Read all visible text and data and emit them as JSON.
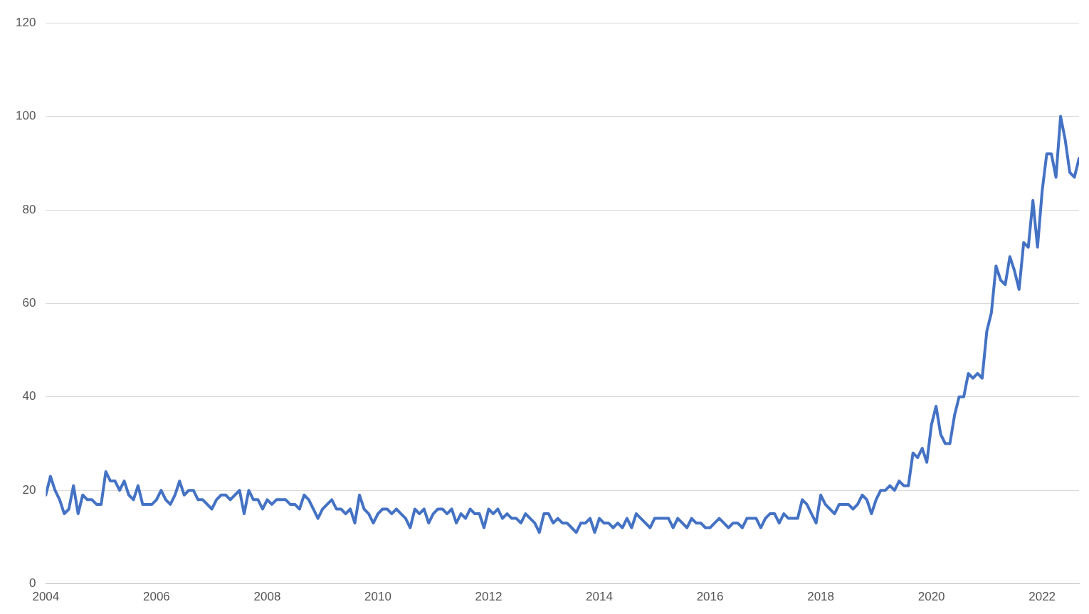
{
  "chart_data": {
    "type": "line",
    "color": "#4472c4",
    "xlim": [
      "2004-01",
      "2022-09"
    ],
    "xticks": [
      "2004",
      "2006",
      "2008",
      "2010",
      "2012",
      "2014",
      "2016",
      "2018",
      "2020",
      "2022"
    ],
    "ylim": [
      0,
      120
    ],
    "yticks": [
      0,
      20,
      40,
      60,
      80,
      100,
      120
    ],
    "grid": "y",
    "marker": "none",
    "line_style": "solid",
    "x": [
      "2004-01",
      "2004-02",
      "2004-03",
      "2004-04",
      "2004-05",
      "2004-06",
      "2004-07",
      "2004-08",
      "2004-09",
      "2004-10",
      "2004-11",
      "2004-12",
      "2005-01",
      "2005-02",
      "2005-03",
      "2005-04",
      "2005-05",
      "2005-06",
      "2005-07",
      "2005-08",
      "2005-09",
      "2005-10",
      "2005-11",
      "2005-12",
      "2006-01",
      "2006-02",
      "2006-03",
      "2006-04",
      "2006-05",
      "2006-06",
      "2006-07",
      "2006-08",
      "2006-09",
      "2006-10",
      "2006-11",
      "2006-12",
      "2007-01",
      "2007-02",
      "2007-03",
      "2007-04",
      "2007-05",
      "2007-06",
      "2007-07",
      "2007-08",
      "2007-09",
      "2007-10",
      "2007-11",
      "2007-12",
      "2008-01",
      "2008-02",
      "2008-03",
      "2008-04",
      "2008-05",
      "2008-06",
      "2008-07",
      "2008-08",
      "2008-09",
      "2008-10",
      "2008-11",
      "2008-12",
      "2009-01",
      "2009-02",
      "2009-03",
      "2009-04",
      "2009-05",
      "2009-06",
      "2009-07",
      "2009-08",
      "2009-09",
      "2009-10",
      "2009-11",
      "2009-12",
      "2010-01",
      "2010-02",
      "2010-03",
      "2010-04",
      "2010-05",
      "2010-06",
      "2010-07",
      "2010-08",
      "2010-09",
      "2010-10",
      "2010-11",
      "2010-12",
      "2011-01",
      "2011-02",
      "2011-03",
      "2011-04",
      "2011-05",
      "2011-06",
      "2011-07",
      "2011-08",
      "2011-09",
      "2011-10",
      "2011-11",
      "2011-12",
      "2012-01",
      "2012-02",
      "2012-03",
      "2012-04",
      "2012-05",
      "2012-06",
      "2012-07",
      "2012-08",
      "2012-09",
      "2012-10",
      "2012-11",
      "2012-12",
      "2013-01",
      "2013-02",
      "2013-03",
      "2013-04",
      "2013-05",
      "2013-06",
      "2013-07",
      "2013-08",
      "2013-09",
      "2013-10",
      "2013-11",
      "2013-12",
      "2014-01",
      "2014-02",
      "2014-03",
      "2014-04",
      "2014-05",
      "2014-06",
      "2014-07",
      "2014-08",
      "2014-09",
      "2014-10",
      "2014-11",
      "2014-12",
      "2015-01",
      "2015-02",
      "2015-03",
      "2015-04",
      "2015-05",
      "2015-06",
      "2015-07",
      "2015-08",
      "2015-09",
      "2015-10",
      "2015-11",
      "2015-12",
      "2016-01",
      "2016-02",
      "2016-03",
      "2016-04",
      "2016-05",
      "2016-06",
      "2016-07",
      "2016-08",
      "2016-09",
      "2016-10",
      "2016-11",
      "2016-12",
      "2017-01",
      "2017-02",
      "2017-03",
      "2017-04",
      "2017-05",
      "2017-06",
      "2017-07",
      "2017-08",
      "2017-09",
      "2017-10",
      "2017-11",
      "2017-12",
      "2018-01",
      "2018-02",
      "2018-03",
      "2018-04",
      "2018-05",
      "2018-06",
      "2018-07",
      "2018-08",
      "2018-09",
      "2018-10",
      "2018-11",
      "2018-12",
      "2019-01",
      "2019-02",
      "2019-03",
      "2019-04",
      "2019-05",
      "2019-06",
      "2019-07",
      "2019-08",
      "2019-09",
      "2019-10",
      "2019-11",
      "2019-12",
      "2020-01",
      "2020-02",
      "2020-03",
      "2020-04",
      "2020-05",
      "2020-06",
      "2020-07",
      "2020-08",
      "2020-09",
      "2020-10",
      "2020-11",
      "2020-12",
      "2021-01",
      "2021-02",
      "2021-03",
      "2021-04",
      "2021-05",
      "2021-06",
      "2021-07",
      "2021-08",
      "2021-09",
      "2021-10",
      "2021-11",
      "2021-12",
      "2022-01",
      "2022-02",
      "2022-03",
      "2022-04",
      "2022-05",
      "2022-06",
      "2022-07",
      "2022-08",
      "2022-09"
    ],
    "values": [
      19,
      23,
      20,
      18,
      15,
      16,
      21,
      15,
      19,
      18,
      18,
      17,
      17,
      24,
      22,
      22,
      20,
      22,
      19,
      18,
      21,
      17,
      17,
      17,
      18,
      20,
      18,
      17,
      19,
      22,
      19,
      20,
      20,
      18,
      18,
      17,
      16,
      18,
      19,
      19,
      18,
      19,
      20,
      15,
      20,
      18,
      18,
      16,
      18,
      17,
      18,
      18,
      18,
      17,
      17,
      16,
      19,
      18,
      16,
      14,
      16,
      17,
      18,
      16,
      16,
      15,
      16,
      13,
      19,
      16,
      15,
      13,
      15,
      16,
      16,
      15,
      16,
      15,
      14,
      12,
      16,
      15,
      16,
      13,
      15,
      16,
      16,
      15,
      16,
      13,
      15,
      14,
      16,
      15,
      15,
      12,
      16,
      15,
      16,
      14,
      15,
      14,
      14,
      13,
      15,
      14,
      13,
      11,
      15,
      15,
      13,
      14,
      13,
      13,
      12,
      11,
      13,
      13,
      14,
      11,
      14,
      13,
      13,
      12,
      13,
      12,
      14,
      12,
      15,
      14,
      13,
      12,
      14,
      14,
      14,
      14,
      12,
      14,
      13,
      12,
      14,
      13,
      13,
      12,
      12,
      13,
      14,
      13,
      12,
      13,
      13,
      12,
      14,
      14,
      14,
      12,
      14,
      15,
      15,
      13,
      15,
      14,
      14,
      14,
      18,
      17,
      15,
      13,
      19,
      17,
      16,
      15,
      17,
      17,
      17,
      16,
      17,
      19,
      18,
      15,
      18,
      20,
      20,
      21,
      20,
      22,
      21,
      21,
      28,
      27,
      29,
      26,
      34,
      38,
      32,
      30,
      30,
      36,
      40,
      40,
      45,
      44,
      45,
      44,
      54,
      58,
      68,
      65,
      64,
      70,
      67,
      63,
      73,
      72,
      82,
      72,
      84,
      92,
      92,
      87,
      100,
      95,
      88,
      87,
      91
    ]
  }
}
